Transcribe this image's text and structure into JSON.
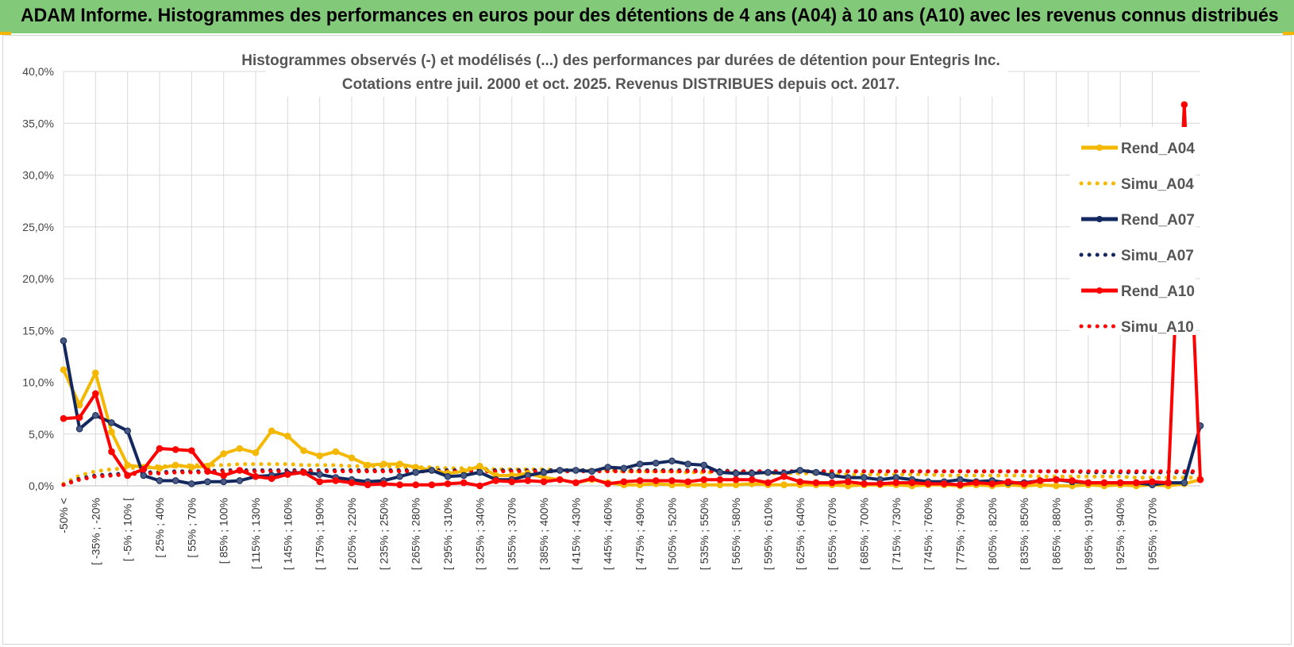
{
  "header": {
    "title": "ADAM Informe. Histogrammes des performances en euros pour des détentions de 4 ans (A04) à 10 ans (A10) avec les revenus connus distribués"
  },
  "colors": {
    "banner": "#82c97a",
    "A04": "#f5b800",
    "A07": "#12285e",
    "A10": "#ff0000",
    "grid": "#d9d9d9"
  },
  "chart_data": {
    "type": "line",
    "title": [
      "Histogrammes observés (-) et modélisés (...) des performances par durées de détention pour Entegris Inc.",
      "Cotations entre juil. 2000 et oct. 2025. Revenus DISTRIBUES depuis oct. 2017."
    ],
    "xlabel": "",
    "ylabel": "",
    "ylim": [
      0,
      40
    ],
    "yticks": [
      "0,0%",
      "5,0%",
      "10,0%",
      "15,0%",
      "20,0%",
      "25,0%",
      "30,0%",
      "35,0%",
      "40,0%"
    ],
    "x_tick_labels": [
      "-50% <",
      "[ -35% ; -20%",
      "[ -5% ; 10% [",
      "[ 25% ; 40%",
      "[ 55% ; 70%",
      "[ 85% ; 100%",
      "[ 115% ; 130%",
      "[ 145% ; 160%",
      "[ 175% ; 190%",
      "[ 205% ; 220%",
      "[ 235% ; 250%",
      "[ 265% ; 280%",
      "[ 295% ; 310%",
      "[ 325% ; 340%",
      "[ 355% ; 370%",
      "[ 385% ; 400%",
      "[ 415% ; 430%",
      "[ 445% ; 460%",
      "[ 475% ; 490%",
      "[ 505% ; 520%",
      "[ 535% ; 550%",
      "[ 565% ; 580%",
      "[ 595% ; 610%",
      "[ 625% ; 640%",
      "[ 655% ; 670%",
      "[ 685% ; 700%",
      "[ 715% ; 730%",
      "[ 745% ; 760%",
      "[ 775% ; 790%",
      "[ 805% ; 820%",
      "[ 835% ; 850%",
      "[ 865% ; 880%",
      "[ 895% ; 910%",
      "[ 925% ; 940%",
      "[ 955% ; 970%"
    ],
    "legend_position": "right",
    "series": [
      {
        "name": "Rend_A04",
        "style": "solid",
        "color": "#f5b800",
        "values": [
          11.2,
          7.8,
          10.9,
          5.2,
          2.0,
          1.8,
          1.7,
          2.0,
          1.8,
          1.9,
          3.1,
          3.6,
          3.2,
          5.3,
          4.8,
          3.4,
          2.9,
          3.3,
          2.7,
          2.0,
          2.1,
          2.1,
          1.8,
          1.5,
          1.2,
          1.4,
          1.9,
          1.0,
          1.0,
          1.2,
          0.8,
          0.6,
          0.3,
          0.6,
          0.3,
          0.1,
          0.1,
          0.2,
          0.1,
          0.1,
          0.1,
          0.1,
          0.1,
          0.2,
          0.1,
          0.1,
          0.1,
          0.1,
          0.1,
          0.0,
          0.1,
          0.1,
          0.1,
          0.0,
          0.1,
          0.1,
          0.0,
          0.1,
          0.0,
          0.1,
          0.0,
          0.1,
          0.0,
          0.0,
          0.1,
          0.0,
          0.1,
          0.0,
          0.1,
          0.0,
          0.2,
          0.6
        ]
      },
      {
        "name": "Simu_A04",
        "style": "dotted",
        "color": "#f5b800",
        "values": [
          0.2,
          1.0,
          1.4,
          1.6,
          1.7,
          1.8,
          1.9,
          1.9,
          2.0,
          2.0,
          2.0,
          2.1,
          2.1,
          2.1,
          2.1,
          2.0,
          2.0,
          2.0,
          1.9,
          1.9,
          1.9,
          1.8,
          1.8,
          1.8,
          1.7,
          1.7,
          1.7,
          1.6,
          1.6,
          1.6,
          1.6,
          1.5,
          1.5,
          1.5,
          1.5,
          1.4,
          1.4,
          1.4,
          1.4,
          1.3,
          1.3,
          1.3,
          1.3,
          1.3,
          1.2,
          1.2,
          1.2,
          1.2,
          1.2,
          1.1,
          1.1,
          1.1,
          1.1,
          1.1,
          1.1,
          1.0,
          1.0,
          1.0,
          1.0,
          1.0,
          1.0,
          0.9,
          0.9,
          0.9,
          0.9,
          0.9,
          0.9,
          0.8,
          0.8,
          0.8,
          0.8,
          0.8
        ]
      },
      {
        "name": "Rend_A07",
        "style": "solid",
        "color": "#12285e",
        "values": [
          14.0,
          5.5,
          6.8,
          6.1,
          5.3,
          1.0,
          0.5,
          0.5,
          0.2,
          0.4,
          0.4,
          0.5,
          0.9,
          1.0,
          1.2,
          1.3,
          1.1,
          0.8,
          0.6,
          0.4,
          0.5,
          0.9,
          1.3,
          1.5,
          0.9,
          1.0,
          1.3,
          0.6,
          0.6,
          1.0,
          1.3,
          1.5,
          1.5,
          1.4,
          1.8,
          1.7,
          2.1,
          2.2,
          2.4,
          2.1,
          2.0,
          1.3,
          1.2,
          1.2,
          1.3,
          1.2,
          1.5,
          1.3,
          1.0,
          0.8,
          0.8,
          0.6,
          0.8,
          0.6,
          0.4,
          0.4,
          0.6,
          0.4,
          0.5,
          0.3,
          0.3,
          0.5,
          0.6,
          0.4,
          0.3,
          0.3,
          0.3,
          0.3,
          0.1,
          0.3,
          0.3,
          5.8
        ]
      },
      {
        "name": "Simu_A07",
        "style": "dotted",
        "color": "#12285e",
        "values": [
          0.1,
          0.7,
          1.0,
          1.1,
          1.2,
          1.3,
          1.3,
          1.4,
          1.4,
          1.4,
          1.5,
          1.5,
          1.5,
          1.5,
          1.5,
          1.5,
          1.5,
          1.5,
          1.5,
          1.5,
          1.5,
          1.5,
          1.5,
          1.5,
          1.5,
          1.5,
          1.5,
          1.5,
          1.5,
          1.5,
          1.5,
          1.5,
          1.5,
          1.5,
          1.5,
          1.5,
          1.5,
          1.5,
          1.5,
          1.5,
          1.5,
          1.5,
          1.4,
          1.4,
          1.4,
          1.4,
          1.4,
          1.4,
          1.4,
          1.4,
          1.4,
          1.4,
          1.4,
          1.4,
          1.4,
          1.4,
          1.4,
          1.4,
          1.4,
          1.4,
          1.4,
          1.4,
          1.4,
          1.4,
          1.3,
          1.3,
          1.3,
          1.3,
          1.3,
          1.3,
          1.3,
          1.3
        ]
      },
      {
        "name": "Rend_A10",
        "style": "solid",
        "color": "#ff0000",
        "values": [
          6.5,
          6.6,
          8.9,
          3.3,
          1.0,
          1.6,
          3.6,
          3.5,
          3.4,
          1.4,
          1.0,
          1.5,
          0.9,
          0.7,
          1.1,
          1.3,
          0.4,
          0.5,
          0.3,
          0.1,
          0.2,
          0.1,
          0.1,
          0.1,
          0.2,
          0.3,
          0.0,
          0.5,
          0.4,
          0.5,
          0.4,
          0.6,
          0.3,
          0.7,
          0.2,
          0.4,
          0.5,
          0.5,
          0.5,
          0.4,
          0.6,
          0.6,
          0.6,
          0.6,
          0.3,
          0.9,
          0.4,
          0.3,
          0.3,
          0.4,
          0.2,
          0.2,
          0.3,
          0.3,
          0.2,
          0.2,
          0.1,
          0.3,
          0.2,
          0.4,
          0.2,
          0.5,
          0.6,
          0.5,
          0.3,
          0.3,
          0.3,
          0.3,
          0.4,
          0.3,
          36.8,
          0.6
        ]
      },
      {
        "name": "Simu_A10",
        "style": "dotted",
        "color": "#ff0000",
        "values": [
          0.1,
          0.6,
          0.9,
          1.0,
          1.1,
          1.2,
          1.2,
          1.3,
          1.3,
          1.3,
          1.4,
          1.4,
          1.4,
          1.4,
          1.4,
          1.4,
          1.4,
          1.4,
          1.4,
          1.4,
          1.4,
          1.4,
          1.4,
          1.4,
          1.4,
          1.4,
          1.4,
          1.4,
          1.4,
          1.4,
          1.4,
          1.4,
          1.4,
          1.4,
          1.4,
          1.4,
          1.4,
          1.4,
          1.4,
          1.4,
          1.4,
          1.4,
          1.4,
          1.4,
          1.4,
          1.4,
          1.4,
          1.4,
          1.4,
          1.4,
          1.4,
          1.4,
          1.4,
          1.4,
          1.4,
          1.4,
          1.4,
          1.4,
          1.4,
          1.4,
          1.4,
          1.4,
          1.4,
          1.4,
          1.4,
          1.4,
          1.4,
          1.4,
          1.4,
          1.4,
          1.4,
          1.4
        ]
      }
    ]
  }
}
